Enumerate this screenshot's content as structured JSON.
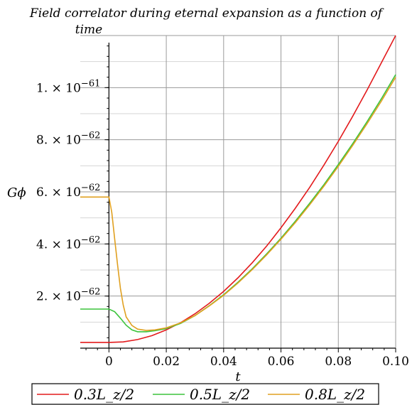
{
  "chart_data": {
    "type": "line",
    "title": "Field correlator during eternal expansion as a function of time",
    "title_lines": [
      "Field correlator during eternal expansion as a function of",
      "time"
    ],
    "xlabel": "t",
    "ylabel": "Gϕ",
    "xlim": [
      -0.01,
      0.1
    ],
    "ylim": [
      0,
      1.2
    ],
    "y_scale_note": "values in units of 10^-61",
    "grid": true,
    "x_ticks": [
      0,
      0.02,
      0.04,
      0.06,
      0.08,
      0.1
    ],
    "x_tick_labels": [
      "0",
      "0.02",
      "0.04",
      "0.06",
      "0.08",
      "0.10"
    ],
    "y_ticks": [
      {
        "value": 0.2,
        "mantissa": "2.",
        "exponent": "−62"
      },
      {
        "value": 0.4,
        "mantissa": "4.",
        "exponent": "−62"
      },
      {
        "value": 0.6,
        "mantissa": "6.",
        "exponent": "−62"
      },
      {
        "value": 0.8,
        "mantissa": "8.",
        "exponent": "−62"
      },
      {
        "value": 1.0,
        "mantissa": "1.",
        "exponent": "−61"
      }
    ],
    "legend_position": "bottom",
    "series": [
      {
        "name": "0.3L_z/2",
        "color": "#e31a1c",
        "points": [
          [
            -0.01,
            0.022
          ],
          [
            0,
            0.022
          ],
          [
            0.005,
            0.024
          ],
          [
            0.01,
            0.033
          ],
          [
            0.015,
            0.048
          ],
          [
            0.02,
            0.07
          ],
          [
            0.025,
            0.098
          ],
          [
            0.03,
            0.132
          ],
          [
            0.035,
            0.172
          ],
          [
            0.04,
            0.218
          ],
          [
            0.045,
            0.27
          ],
          [
            0.05,
            0.328
          ],
          [
            0.055,
            0.392
          ],
          [
            0.06,
            0.462
          ],
          [
            0.065,
            0.537
          ],
          [
            0.07,
            0.617
          ],
          [
            0.075,
            0.703
          ],
          [
            0.08,
            0.794
          ],
          [
            0.085,
            0.89
          ],
          [
            0.09,
            0.99
          ],
          [
            0.095,
            1.095
          ],
          [
            0.1,
            1.2
          ]
        ]
      },
      {
        "name": "0.5L_z/2",
        "color": "#3cc43c",
        "points": [
          [
            -0.01,
            0.15
          ],
          [
            0,
            0.15
          ],
          [
            0.002,
            0.14
          ],
          [
            0.004,
            0.115
          ],
          [
            0.006,
            0.088
          ],
          [
            0.008,
            0.07
          ],
          [
            0.01,
            0.063
          ],
          [
            0.013,
            0.063
          ],
          [
            0.016,
            0.067
          ],
          [
            0.02,
            0.075
          ],
          [
            0.025,
            0.095
          ],
          [
            0.03,
            0.125
          ],
          [
            0.035,
            0.163
          ],
          [
            0.04,
            0.205
          ],
          [
            0.045,
            0.253
          ],
          [
            0.05,
            0.305
          ],
          [
            0.055,
            0.362
          ],
          [
            0.06,
            0.422
          ],
          [
            0.065,
            0.487
          ],
          [
            0.07,
            0.556
          ],
          [
            0.075,
            0.628
          ],
          [
            0.08,
            0.705
          ],
          [
            0.085,
            0.785
          ],
          [
            0.09,
            0.869
          ],
          [
            0.095,
            0.957
          ],
          [
            0.1,
            1.05
          ]
        ]
      },
      {
        "name": "0.8L_z/2",
        "color": "#e0a020",
        "points": [
          [
            -0.01,
            0.58
          ],
          [
            0,
            0.58
          ],
          [
            0.001,
            0.52
          ],
          [
            0.002,
            0.42
          ],
          [
            0.003,
            0.32
          ],
          [
            0.004,
            0.23
          ],
          [
            0.005,
            0.165
          ],
          [
            0.006,
            0.12
          ],
          [
            0.008,
            0.087
          ],
          [
            0.01,
            0.073
          ],
          [
            0.013,
            0.068
          ],
          [
            0.016,
            0.07
          ],
          [
            0.02,
            0.078
          ],
          [
            0.025,
            0.097
          ],
          [
            0.03,
            0.125
          ],
          [
            0.035,
            0.162
          ],
          [
            0.04,
            0.203
          ],
          [
            0.045,
            0.25
          ],
          [
            0.05,
            0.302
          ],
          [
            0.055,
            0.358
          ],
          [
            0.06,
            0.418
          ],
          [
            0.065,
            0.482
          ],
          [
            0.07,
            0.55
          ],
          [
            0.075,
            0.622
          ],
          [
            0.08,
            0.698
          ],
          [
            0.085,
            0.778
          ],
          [
            0.09,
            0.861
          ],
          [
            0.095,
            0.948
          ],
          [
            0.1,
            1.04
          ]
        ]
      }
    ]
  }
}
